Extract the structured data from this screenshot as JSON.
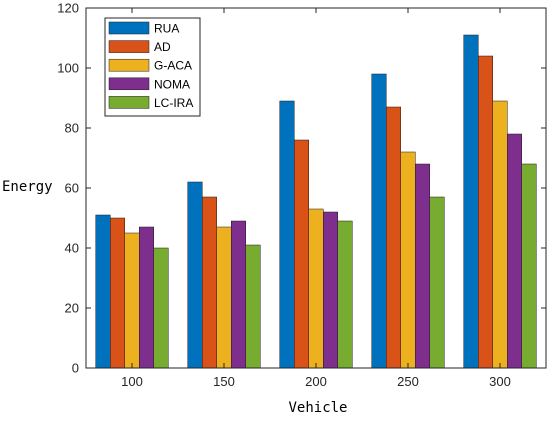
{
  "chart_data": {
    "type": "bar",
    "title": "",
    "xlabel": "Vehicle",
    "ylabel": "Energy",
    "categories": [
      "100",
      "150",
      "200",
      "250",
      "300"
    ],
    "ylim": [
      0,
      120
    ],
    "yticks": [
      0,
      20,
      40,
      60,
      80,
      100,
      120
    ],
    "grid": false,
    "legend_position": "top-left",
    "series": [
      {
        "name": "RUA",
        "color": "#0072BD",
        "values": [
          51,
          62,
          89,
          98,
          111
        ]
      },
      {
        "name": "AD",
        "color": "#D95319",
        "values": [
          50,
          57,
          76,
          87,
          104
        ]
      },
      {
        "name": "G-ACA",
        "color": "#EDB120",
        "values": [
          45,
          47,
          53,
          72,
          89
        ]
      },
      {
        "name": "NOMA",
        "color": "#7E2F8E",
        "values": [
          47,
          49,
          52,
          68,
          78
        ]
      },
      {
        "name": "LC-IRA",
        "color": "#77AC30",
        "values": [
          40,
          41,
          49,
          57,
          68
        ]
      }
    ]
  }
}
